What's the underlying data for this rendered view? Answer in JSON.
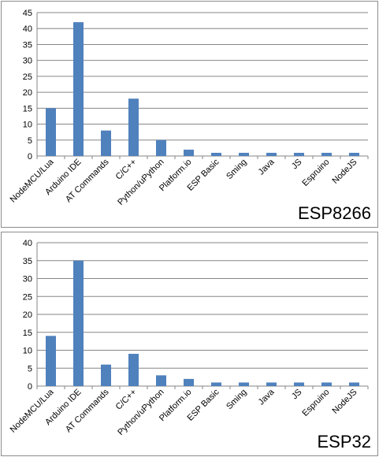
{
  "chart_data": [
    {
      "type": "bar",
      "title": "",
      "corner_label": "ESP8266",
      "xlabel": "",
      "ylabel": "",
      "ylim": [
        0,
        45
      ],
      "yticks": [
        0,
        5,
        10,
        15,
        20,
        25,
        30,
        35,
        40,
        45
      ],
      "grid": true,
      "legend": "none",
      "bar_color": "#4f81bd",
      "categories": [
        "NodeMCU/Lua",
        "Arduino IDE",
        "AT Commands",
        "C/C++",
        "Python/uPython",
        "Platform.io",
        "ESP Basic",
        "Sming",
        "Java",
        "JS",
        "Espruino",
        "NodeJS"
      ],
      "values": [
        15,
        42,
        8,
        18,
        5,
        2,
        1,
        1,
        1,
        1,
        1,
        1
      ]
    },
    {
      "type": "bar",
      "title": "",
      "corner_label": "ESP32",
      "xlabel": "",
      "ylabel": "",
      "ylim": [
        0,
        40
      ],
      "yticks": [
        0,
        5,
        10,
        15,
        20,
        25,
        30,
        35,
        40
      ],
      "grid": true,
      "legend": "none",
      "bar_color": "#4f81bd",
      "categories": [
        "NodeMCU/Lua",
        "Arduino IDE",
        "AT Commands",
        "C/C++",
        "Python/uPython",
        "Platform.io",
        "ESP Basic",
        "Sming",
        "Java",
        "JS",
        "Espruino",
        "NodeJS"
      ],
      "values": [
        14,
        35,
        6,
        9,
        3,
        2,
        1,
        1,
        1,
        1,
        1,
        1
      ]
    }
  ]
}
